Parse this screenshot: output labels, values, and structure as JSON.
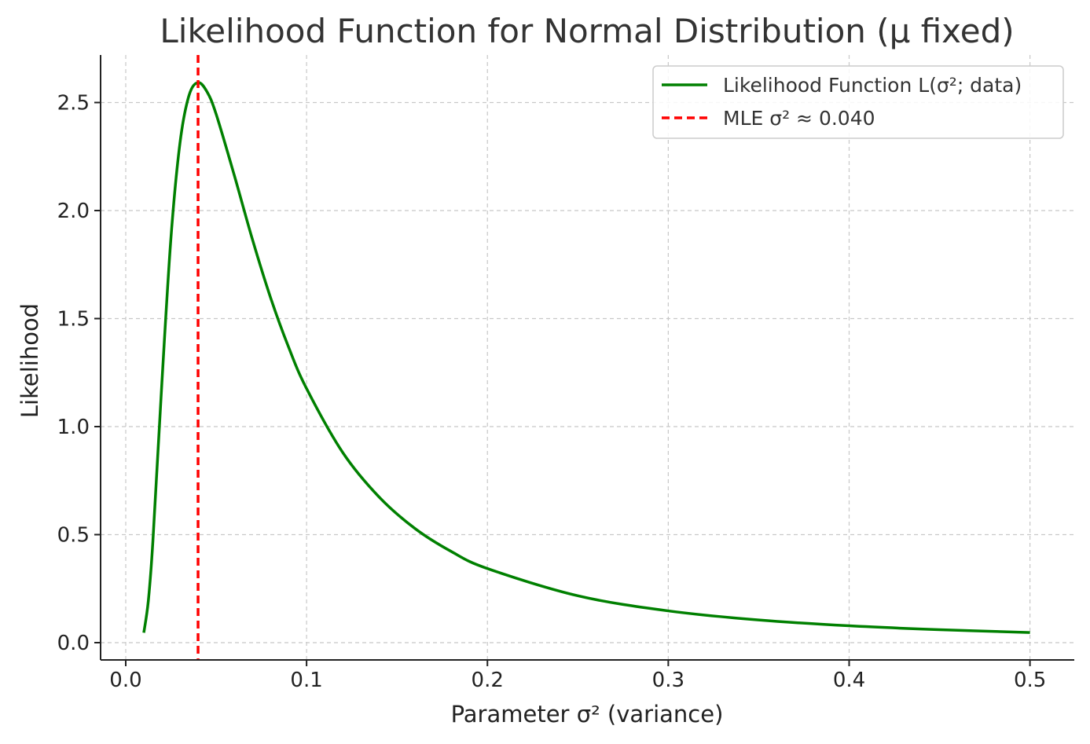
{
  "chart_data": {
    "type": "line",
    "title": "Likelihood Function for Normal Distribution (μ fixed)",
    "xlabel": "Parameter σ² (variance)",
    "ylabel": "Likelihood",
    "xlim": [
      -0.0139,
      0.5245
    ],
    "ylim": [
      -0.08,
      2.72
    ],
    "x_ticks": [
      "0.0",
      "0.1",
      "0.2",
      "0.3",
      "0.4",
      "0.5"
    ],
    "x_tick_values": [
      0,
      0.1,
      0.2,
      0.3,
      0.4,
      0.5
    ],
    "y_ticks": [
      "0.0",
      "0.5",
      "1.0",
      "1.5",
      "2.0",
      "2.5"
    ],
    "y_tick_values": [
      0,
      0.5,
      1.0,
      1.5,
      2.0,
      2.5
    ],
    "grid": true,
    "legend_position": "top-right",
    "series": [
      {
        "name": "Likelihood Function L(σ²; data)",
        "color": "#008000",
        "style": "solid",
        "x": [
          0.01,
          0.0125,
          0.015,
          0.02,
          0.025,
          0.03,
          0.035,
          0.04,
          0.045,
          0.05,
          0.06,
          0.07,
          0.08,
          0.09,
          0.1,
          0.12,
          0.14,
          0.16,
          0.18,
          0.2,
          0.25,
          0.3,
          0.35,
          0.4,
          0.45,
          0.5
        ],
        "y": [
          0.046,
          0.194,
          0.467,
          1.204,
          1.873,
          2.313,
          2.533,
          2.592,
          2.549,
          2.446,
          2.164,
          1.868,
          1.599,
          1.369,
          1.176,
          0.88,
          0.675,
          0.528,
          0.422,
          0.343,
          0.217,
          0.147,
          0.105,
          0.078,
          0.06,
          0.047
        ]
      }
    ],
    "vlines": [
      {
        "name": "MLE σ² ≈ 0.040",
        "x": 0.04,
        "color": "#ff0000",
        "style": "dashed"
      }
    ]
  }
}
